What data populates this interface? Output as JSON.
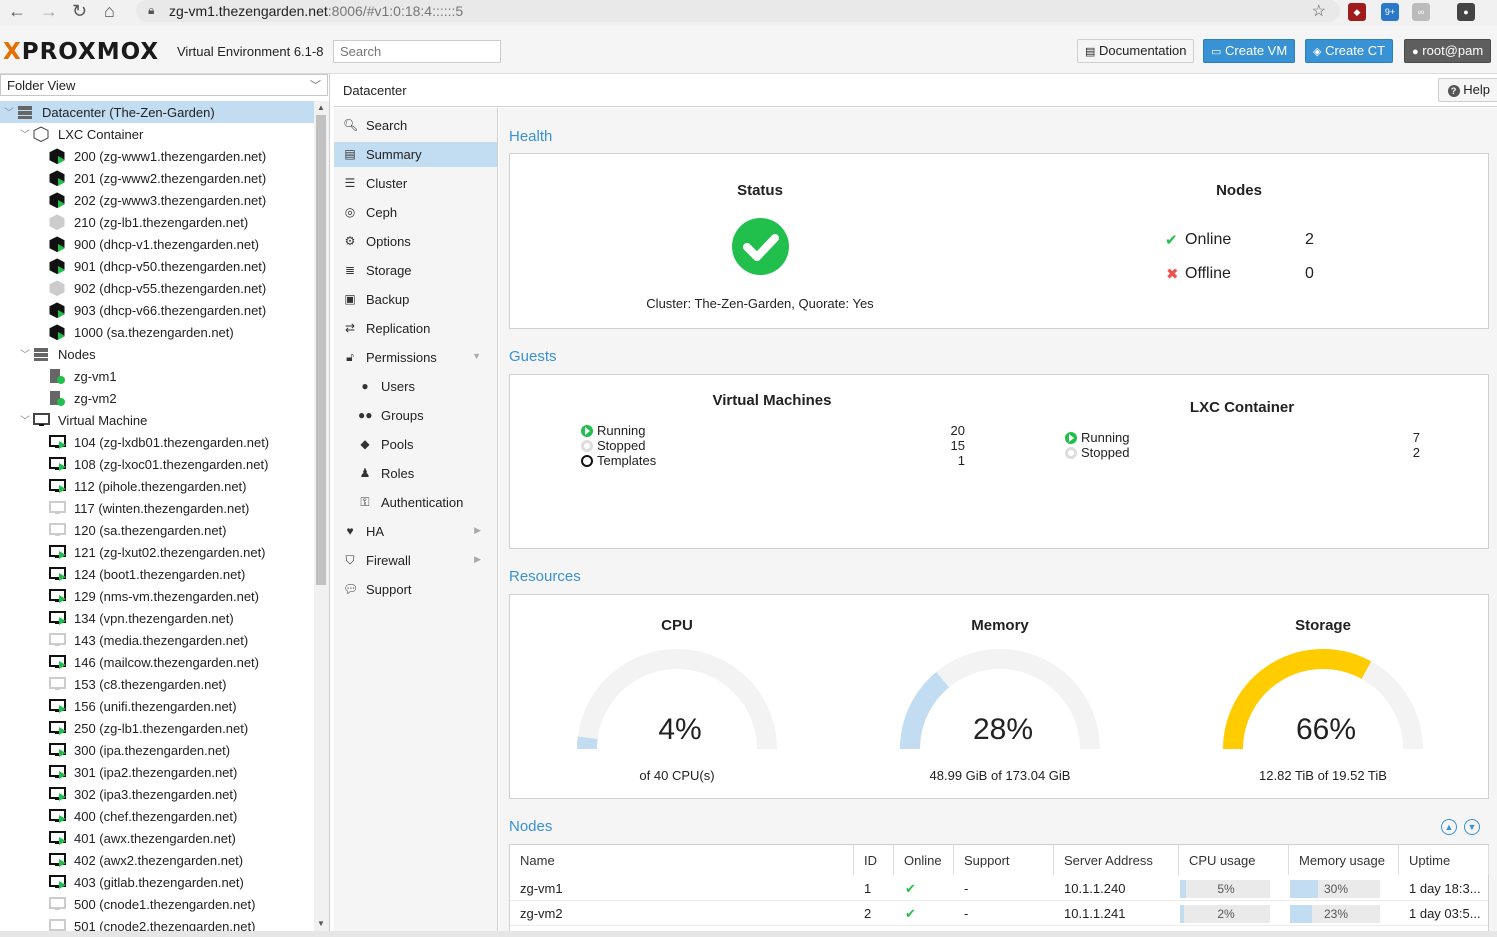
{
  "browser": {
    "url_host": "zg-vm1.thezengarden.net",
    "url_rest": ":8006/#v1:0:18:4::::::5",
    "ext_badge": "9+"
  },
  "header": {
    "logo_x": "X",
    "logo_text": "PROXMOX",
    "version": "Virtual Environment 6.1-8",
    "search_placeholder": "Search",
    "documentation": "Documentation",
    "create_vm": "Create VM",
    "create_ct": "Create CT",
    "user": "root@pam"
  },
  "left": {
    "view": "Folder View",
    "tree": [
      {
        "label": "Datacenter (The-Zen-Garden)",
        "level": 0,
        "icon": "datacenter-icon",
        "expanded": true,
        "selected": true
      },
      {
        "label": "LXC Container",
        "level": 1,
        "icon": "container-folder-icon",
        "expanded": true
      },
      {
        "label": "200 (zg-www1.thezengarden.net)",
        "level": 2,
        "icon": "container-running-icon"
      },
      {
        "label": "201 (zg-www2.thezengarden.net)",
        "level": 2,
        "icon": "container-running-icon"
      },
      {
        "label": "202 (zg-www3.thezengarden.net)",
        "level": 2,
        "icon": "container-running-icon"
      },
      {
        "label": "210 (zg-lb1.thezengarden.net)",
        "level": 2,
        "icon": "container-stopped-icon"
      },
      {
        "label": "900 (dhcp-v1.thezengarden.net)",
        "level": 2,
        "icon": "container-running-icon"
      },
      {
        "label": "901 (dhcp-v50.thezengarden.net)",
        "level": 2,
        "icon": "container-running-icon"
      },
      {
        "label": "902 (dhcp-v55.thezengarden.net)",
        "level": 2,
        "icon": "container-stopped-icon"
      },
      {
        "label": "903 (dhcp-v66.thezengarden.net)",
        "level": 2,
        "icon": "container-running-icon"
      },
      {
        "label": "1000 (sa.thezengarden.net)",
        "level": 2,
        "icon": "container-running-icon"
      },
      {
        "label": "Nodes",
        "level": 1,
        "icon": "nodes-folder-icon",
        "expanded": true
      },
      {
        "label": "zg-vm1",
        "level": 2,
        "icon": "node-online-icon"
      },
      {
        "label": "zg-vm2",
        "level": 2,
        "icon": "node-online-icon"
      },
      {
        "label": "Virtual Machine",
        "level": 1,
        "icon": "vm-folder-icon",
        "expanded": true
      },
      {
        "label": "104 (zg-lxdb01.thezengarden.net)",
        "level": 2,
        "icon": "vm-running-icon"
      },
      {
        "label": "108 (zg-lxoc01.thezengarden.net)",
        "level": 2,
        "icon": "vm-running-icon"
      },
      {
        "label": "112 (pihole.thezengarden.net)",
        "level": 2,
        "icon": "vm-running-icon"
      },
      {
        "label": "117 (winten.thezengarden.net)",
        "level": 2,
        "icon": "vm-stopped-icon"
      },
      {
        "label": "120 (sa.thezengarden.net)",
        "level": 2,
        "icon": "vm-stopped-icon"
      },
      {
        "label": "121 (zg-lxut02.thezengarden.net)",
        "level": 2,
        "icon": "vm-running-icon"
      },
      {
        "label": "124 (boot1.thezengarden.net)",
        "level": 2,
        "icon": "vm-running-icon"
      },
      {
        "label": "129 (nms-vm.thezengarden.net)",
        "level": 2,
        "icon": "vm-running-icon"
      },
      {
        "label": "134 (vpn.thezengarden.net)",
        "level": 2,
        "icon": "vm-running-icon"
      },
      {
        "label": "143 (media.thezengarden.net)",
        "level": 2,
        "icon": "vm-stopped-icon"
      },
      {
        "label": "146 (mailcow.thezengarden.net)",
        "level": 2,
        "icon": "vm-running-icon"
      },
      {
        "label": "153 (c8.thezengarden.net)",
        "level": 2,
        "icon": "vm-stopped-icon"
      },
      {
        "label": "156 (unifi.thezengarden.net)",
        "level": 2,
        "icon": "vm-running-icon"
      },
      {
        "label": "250 (zg-lb1.thezengarden.net)",
        "level": 2,
        "icon": "vm-running-icon"
      },
      {
        "label": "300 (ipa.thezengarden.net)",
        "level": 2,
        "icon": "vm-running-icon"
      },
      {
        "label": "301 (ipa2.thezengarden.net)",
        "level": 2,
        "icon": "vm-running-icon"
      },
      {
        "label": "302 (ipa3.thezengarden.net)",
        "level": 2,
        "icon": "vm-running-icon"
      },
      {
        "label": "400 (chef.thezengarden.net)",
        "level": 2,
        "icon": "vm-running-icon"
      },
      {
        "label": "401 (awx.thezengarden.net)",
        "level": 2,
        "icon": "vm-running-icon"
      },
      {
        "label": "402 (awx2.thezengarden.net)",
        "level": 2,
        "icon": "vm-running-icon"
      },
      {
        "label": "403 (gitlab.thezengarden.net)",
        "level": 2,
        "icon": "vm-running-icon"
      },
      {
        "label": "500 (cnode1.thezengarden.net)",
        "level": 2,
        "icon": "vm-stopped-icon"
      },
      {
        "label": "501 (cnode2.thezengarden.net)",
        "level": 2,
        "icon": "vm-stopped-icon"
      }
    ]
  },
  "crumb": {
    "title": "Datacenter",
    "help": "Help"
  },
  "menu": [
    {
      "label": "Search",
      "icon": "search-icon",
      "glyph": "🔍︎",
      "sub": false
    },
    {
      "label": "Summary",
      "icon": "book-icon",
      "glyph": "▤",
      "sub": false,
      "selected": true
    },
    {
      "label": "Cluster",
      "icon": "server-icon",
      "glyph": "☰",
      "sub": false
    },
    {
      "label": "Ceph",
      "icon": "ceph-icon",
      "glyph": "◎",
      "sub": false
    },
    {
      "label": "Options",
      "icon": "gear-icon",
      "glyph": "⚙",
      "sub": false
    },
    {
      "label": "Storage",
      "icon": "database-icon",
      "glyph": "≣",
      "sub": false
    },
    {
      "label": "Backup",
      "icon": "floppy-icon",
      "glyph": "▣",
      "sub": false
    },
    {
      "label": "Replication",
      "icon": "retweet-icon",
      "glyph": "⇄",
      "sub": false
    },
    {
      "label": "Permissions",
      "icon": "unlock-icon",
      "glyph": "🔓︎",
      "sub": false,
      "arrow": "down"
    },
    {
      "label": "Users",
      "icon": "user-icon",
      "glyph": "●",
      "sub": true
    },
    {
      "label": "Groups",
      "icon": "users-icon",
      "glyph": "●●",
      "sub": true
    },
    {
      "label": "Pools",
      "icon": "tags-icon",
      "glyph": "◆",
      "sub": true
    },
    {
      "label": "Roles",
      "icon": "male-icon",
      "glyph": "♟",
      "sub": true
    },
    {
      "label": "Authentication",
      "icon": "key-icon",
      "glyph": "⚿",
      "sub": true
    },
    {
      "label": "HA",
      "icon": "heartbeat-icon",
      "glyph": "♥",
      "sub": false,
      "arrow": "right"
    },
    {
      "label": "Firewall",
      "icon": "shield-icon",
      "glyph": "⛉",
      "sub": false,
      "arrow": "right"
    },
    {
      "label": "Support",
      "icon": "comments-icon",
      "glyph": "💬︎",
      "sub": false
    }
  ],
  "health": {
    "title": "Health",
    "status_title": "Status",
    "cluster_text": "Cluster: The-Zen-Garden, Quorate: Yes",
    "nodes_title": "Nodes",
    "online_label": "Online",
    "online_count": "2",
    "offline_label": "Offline",
    "offline_count": "0"
  },
  "guests": {
    "title": "Guests",
    "vm_title": "Virtual Machines",
    "vm_running_label": "Running",
    "vm_running": "20",
    "vm_stopped_label": "Stopped",
    "vm_stopped": "15",
    "vm_templates_label": "Templates",
    "vm_templates": "1",
    "ct_title": "LXC Container",
    "ct_running_label": "Running",
    "ct_running": "7",
    "ct_stopped_label": "Stopped",
    "ct_stopped": "2"
  },
  "resources": {
    "title": "Resources",
    "gauges": [
      {
        "title": "CPU",
        "percent": 4,
        "percent_text": "4%",
        "sub": "of 40 CPU(s)",
        "color": "#c2ddf2"
      },
      {
        "title": "Memory",
        "percent": 28,
        "percent_text": "28%",
        "sub": "48.99 GiB of 173.04 GiB",
        "color": "#c2ddf2"
      },
      {
        "title": "Storage",
        "percent": 66,
        "percent_text": "66%",
        "sub": "12.82 TiB of 19.52 TiB",
        "color": "#ffcc00"
      }
    ]
  },
  "nodes": {
    "title": "Nodes",
    "headers": [
      "Name",
      "ID",
      "Online",
      "Support",
      "Server Address",
      "CPU usage",
      "Memory usage",
      "Uptime"
    ],
    "rows": [
      {
        "name": "zg-vm1",
        "id": "1",
        "support": "-",
        "address": "10.1.1.240",
        "cpu": "5%",
        "cpu_pct": 5,
        "mem": "30%",
        "mem_pct": 30,
        "uptime": "1 day 18:3..."
      },
      {
        "name": "zg-vm2",
        "id": "2",
        "support": "-",
        "address": "10.1.1.241",
        "cpu": "2%",
        "cpu_pct": 2,
        "mem": "23%",
        "mem_pct": 23,
        "uptime": "1 day 03:5..."
      }
    ]
  }
}
